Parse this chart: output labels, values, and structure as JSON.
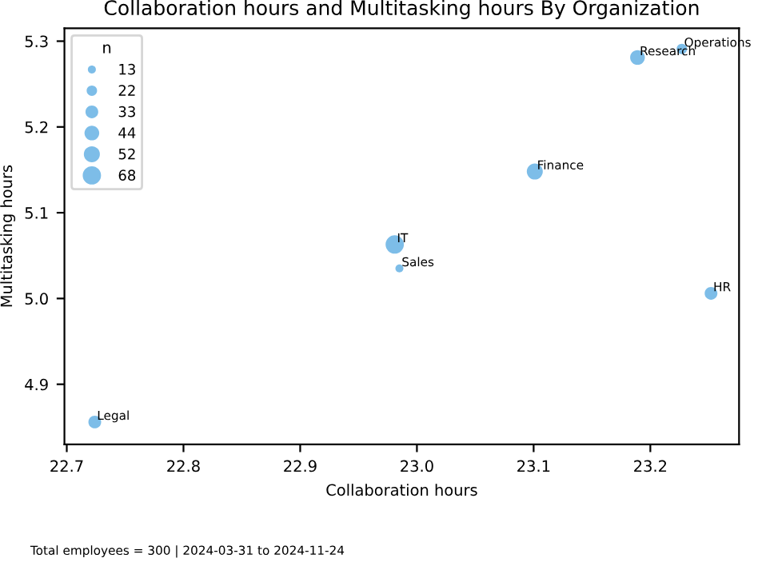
{
  "chart_data": {
    "type": "bubble",
    "title": "Collaboration hours and Multitasking hours By Organization",
    "xlabel": "Collaboration hours",
    "ylabel": "Multitasking hours",
    "legend_title": "n",
    "x": [
      23.227,
      23.189,
      23.101,
      22.981,
      22.985,
      23.252,
      22.724
    ],
    "values": [
      5.291,
      5.281,
      5.148,
      5.063,
      5.035,
      5.006,
      4.856
    ],
    "sizes": [
      22,
      44,
      52,
      68,
      13,
      33,
      33
    ],
    "size_legend": [
      13,
      22,
      33,
      44,
      52,
      68
    ],
    "color": "#5dade2",
    "xlim": [
      22.698,
      23.276
    ],
    "ylim": [
      4.83,
      5.315
    ],
    "xticks": [
      {
        "value": 22.7,
        "label": "22.7"
      },
      {
        "value": 22.8,
        "label": "22.8"
      },
      {
        "value": 22.9,
        "label": "22.9"
      },
      {
        "value": 23.0,
        "label": "23.0"
      },
      {
        "value": 23.1,
        "label": "23.1"
      },
      {
        "value": 23.2,
        "label": "23.2"
      }
    ],
    "yticks": [
      {
        "value": 4.9,
        "label": "4.9"
      },
      {
        "value": 5.0,
        "label": "5.0"
      },
      {
        "value": 5.1,
        "label": "5.1"
      },
      {
        "value": 5.2,
        "label": "5.2"
      },
      {
        "value": 5.3,
        "label": "5.3"
      }
    ],
    "grid": false,
    "annotations": [
      {
        "text": "Operations",
        "x": 23.227,
        "y": 5.291
      },
      {
        "text": "Research",
        "x": 23.189,
        "y": 5.281
      },
      {
        "text": "Finance",
        "x": 23.101,
        "y": 5.148
      },
      {
        "text": "IT",
        "x": 22.981,
        "y": 5.063
      },
      {
        "text": "Sales",
        "x": 22.985,
        "y": 5.035
      },
      {
        "text": "HR",
        "x": 23.252,
        "y": 5.006
      },
      {
        "text": "Legal",
        "x": 22.724,
        "y": 4.856
      },
      "Total employees = 300 | 2024-03-31 to 2024-11-24"
    ]
  }
}
